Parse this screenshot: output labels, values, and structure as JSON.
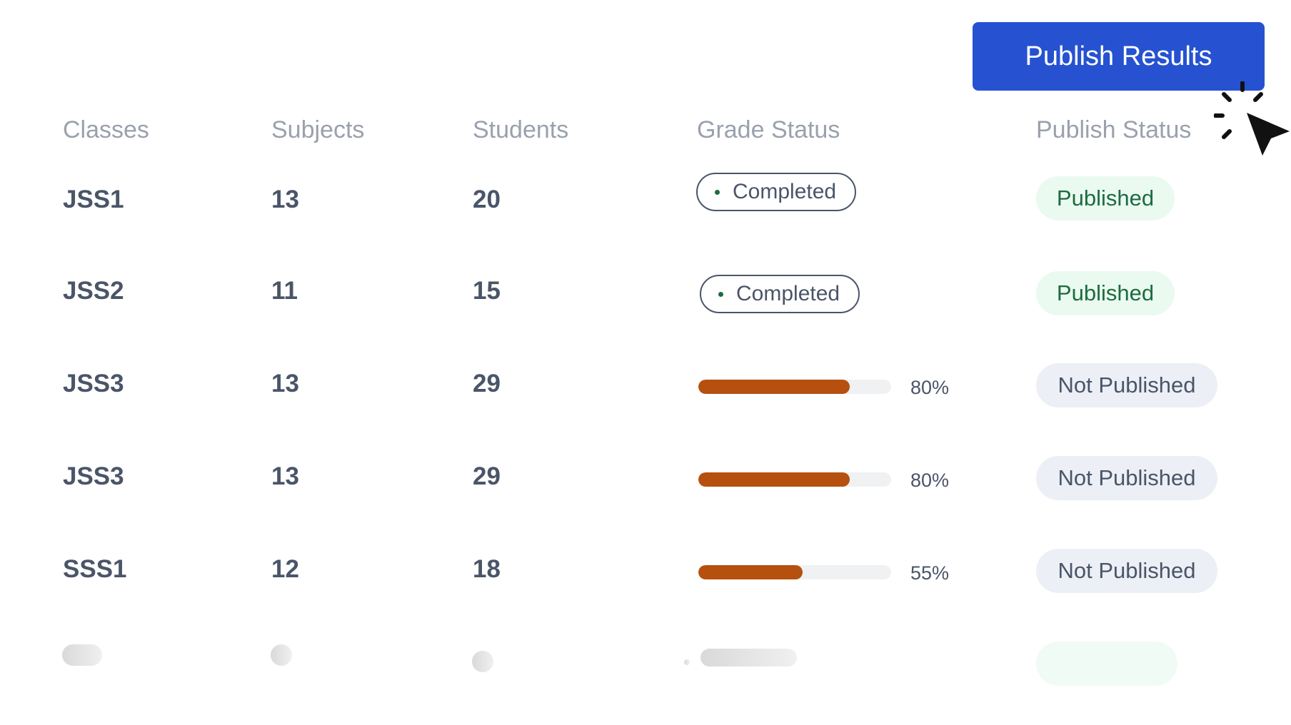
{
  "toolbar": {
    "publish_label": "Publish Results"
  },
  "colors": {
    "accent": "#2652d1",
    "progress_fill": "#b5500e",
    "published_bg": "#eafaf1",
    "published_text": "#1e6b3e",
    "not_published_bg": "#eceff5"
  },
  "table": {
    "headers": [
      "Classes",
      "Subjects",
      "Students",
      "Grade Status",
      "Publish Status"
    ],
    "rows": [
      {
        "class": "JSS1",
        "subjects": "13",
        "students": "20",
        "grade_status": "Completed",
        "progress": null,
        "publish_status": "Published"
      },
      {
        "class": "JSS2",
        "subjects": "11",
        "students": "15",
        "grade_status": "Completed",
        "progress": null,
        "publish_status": "Published"
      },
      {
        "class": "JSS3",
        "subjects": "13",
        "students": "29",
        "grade_status": null,
        "progress": "80%",
        "publish_status": "Not Published"
      },
      {
        "class": "JSS3",
        "subjects": "13",
        "students": "29",
        "grade_status": null,
        "progress": "80%",
        "publish_status": "Not Published"
      },
      {
        "class": "SSS1",
        "subjects": "12",
        "students": "18",
        "grade_status": null,
        "progress": "55%",
        "publish_status": "Not Published"
      }
    ]
  },
  "icons": {
    "cursor": "click-cursor-icon",
    "status_dot": "dot-icon"
  }
}
